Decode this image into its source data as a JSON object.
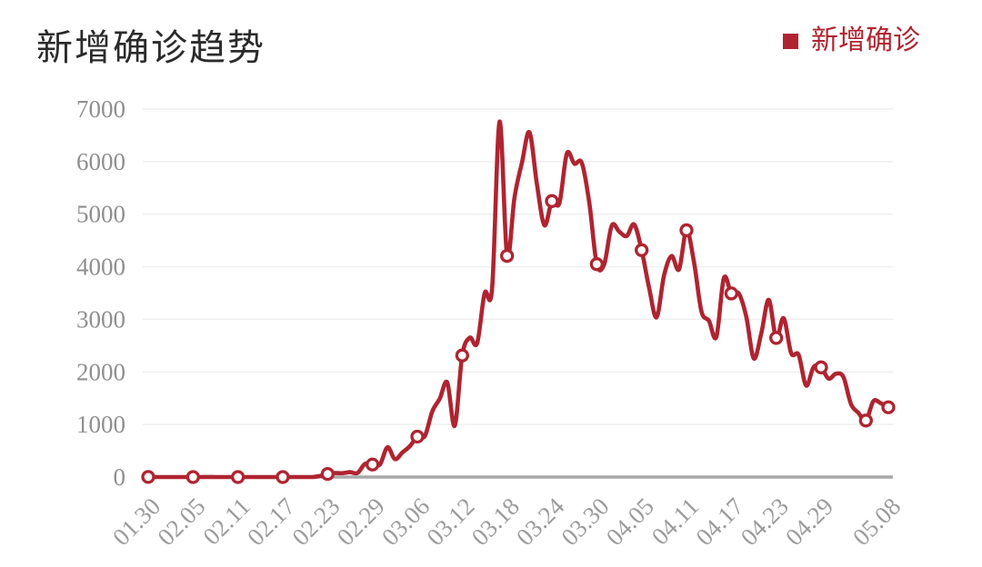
{
  "title": "新增确诊趋势",
  "legend": {
    "label": "新增确诊",
    "color": "#af2430"
  },
  "chart_data": {
    "type": "line",
    "title": "新增确诊趋势",
    "series_name": "新增确诊",
    "smooth": true,
    "grid": "horizontal",
    "legend_position": "top-right",
    "line_color": "#af2430",
    "grid_color": "#efefef",
    "axis_line_color": "#a9a9a9",
    "y_label_color": "#8f8f8f",
    "x_label_color": "#9b9b9b",
    "marker_every": 6,
    "ylim": [
      0,
      7000
    ],
    "y_ticks": [
      0,
      1000,
      2000,
      3000,
      4000,
      5000,
      6000,
      7000
    ],
    "x_tick_labels": [
      "01.30",
      "02.05",
      "02.11",
      "02.17",
      "02.23",
      "02.29",
      "03.06",
      "03.12",
      "03.18",
      "03.24",
      "03.30",
      "04.05",
      "04.11",
      "04.17",
      "04.23",
      "04.29",
      "05.08"
    ],
    "x": [
      "01.30",
      "01.31",
      "02.01",
      "02.02",
      "02.03",
      "02.04",
      "02.05",
      "02.06",
      "02.07",
      "02.08",
      "02.09",
      "02.10",
      "02.11",
      "02.12",
      "02.13",
      "02.14",
      "02.15",
      "02.16",
      "02.17",
      "02.18",
      "02.19",
      "02.20",
      "02.21",
      "02.22",
      "02.23",
      "02.24",
      "02.25",
      "02.26",
      "02.27",
      "02.28",
      "02.29",
      "03.01",
      "03.02",
      "03.03",
      "03.04",
      "03.05",
      "03.06",
      "03.07",
      "03.08",
      "03.09",
      "03.10",
      "03.11",
      "03.12",
      "03.13",
      "03.14",
      "03.15",
      "03.16",
      "03.17",
      "03.18",
      "03.19",
      "03.20",
      "03.21",
      "03.22",
      "03.23",
      "03.24",
      "03.25",
      "03.26",
      "03.27",
      "03.28",
      "03.29",
      "03.30",
      "03.31",
      "04.01",
      "04.02",
      "04.03",
      "04.04",
      "04.05",
      "04.06",
      "04.07",
      "04.08",
      "04.09",
      "04.10",
      "04.11",
      "04.12",
      "04.13",
      "04.14",
      "04.15",
      "04.16",
      "04.17",
      "04.18",
      "04.19",
      "04.20",
      "04.21",
      "04.22",
      "04.23",
      "04.24",
      "04.25",
      "04.26",
      "04.27",
      "04.28",
      "04.29",
      "04.30",
      "05.01",
      "05.02",
      "05.03",
      "05.04",
      "05.05",
      "05.06",
      "05.07",
      "05.08"
    ],
    "values": [
      2,
      0,
      0,
      0,
      0,
      0,
      0,
      0,
      1,
      0,
      0,
      0,
      0,
      0,
      0,
      0,
      0,
      0,
      0,
      0,
      0,
      0,
      0,
      21,
      58,
      76,
      74,
      93,
      78,
      250,
      238,
      240,
      566,
      342,
      466,
      587,
      769,
      778,
      1247,
      1492,
      1797,
      977,
      2313,
      2651,
      2547,
      3497,
      3590,
      6759,
      4207,
      5322,
      5986,
      6557,
      5560,
      4789,
      5249,
      5210,
      6153,
      5959,
      5974,
      5217,
      4050,
      4053,
      4782,
      4668,
      4585,
      4805,
      4316,
      3599,
      3039,
      3836,
      4204,
      3951,
      4694,
      4092,
      3153,
      2972,
      2667,
      3786,
      3493,
      3491,
      3047,
      2256,
      2729,
      3370,
      2646,
      3021,
      2357,
      2324,
      1739,
      2091,
      2086,
      1872,
      1965,
      1900,
      1389,
      1221,
      1075,
      1444,
      1401,
      1327
    ]
  }
}
